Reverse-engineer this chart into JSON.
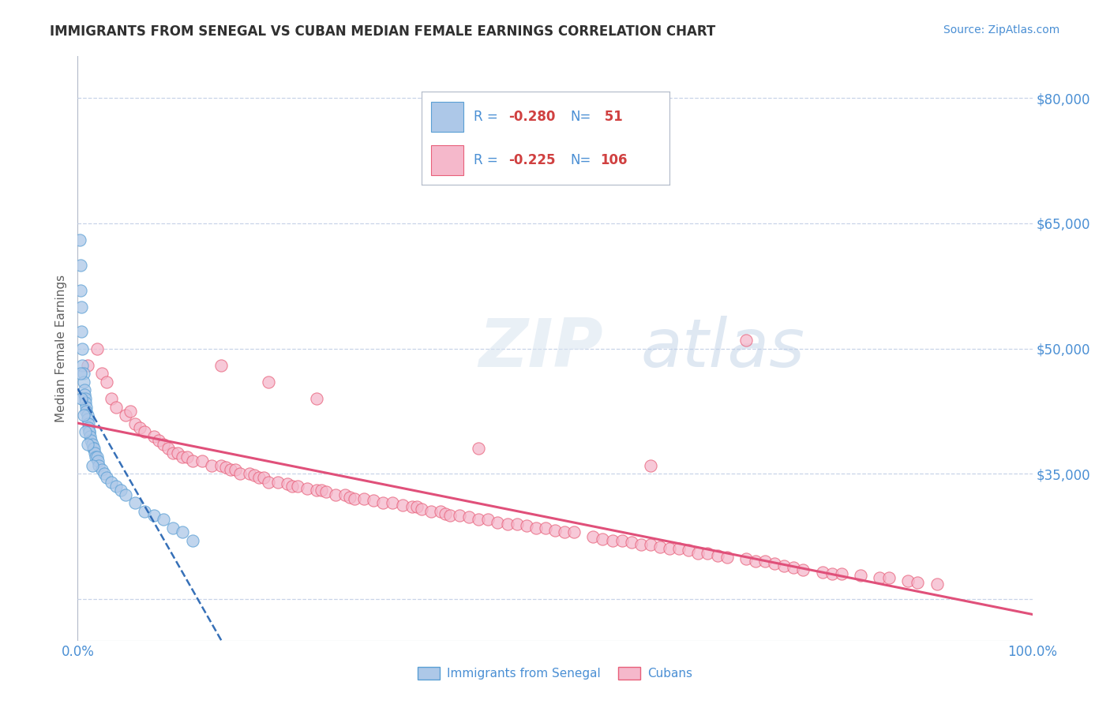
{
  "title": "IMMIGRANTS FROM SENEGAL VS CUBAN MEDIAN FEMALE EARNINGS CORRELATION CHART",
  "source": "Source: ZipAtlas.com",
  "ylabel": "Median Female Earnings",
  "xlim": [
    0,
    1.0
  ],
  "ylim": [
    15000,
    85000
  ],
  "ytick_positions": [
    20000,
    35000,
    50000,
    65000,
    80000
  ],
  "ytick_labels": [
    "",
    "$35,000",
    "$50,000",
    "$65,000",
    "$80,000"
  ],
  "senegal_color": "#adc8e8",
  "cuban_color": "#f5b8cb",
  "senegal_edge_color": "#5a9fd4",
  "cuban_edge_color": "#e8607a",
  "senegal_line_color": "#2060b0",
  "cuban_line_color": "#e0507a",
  "background_color": "#ffffff",
  "grid_color": "#c8d4e8",
  "title_color": "#303030",
  "axis_label_color": "#606060",
  "tick_color": "#4a8fd4",
  "watermark_color": "#d0dff0",
  "legend_text_color": "#4a8fd4",
  "senegal_x": [
    0.002,
    0.003,
    0.003,
    0.004,
    0.004,
    0.005,
    0.005,
    0.006,
    0.006,
    0.007,
    0.007,
    0.008,
    0.008,
    0.009,
    0.009,
    0.01,
    0.01,
    0.011,
    0.011,
    0.012,
    0.012,
    0.013,
    0.014,
    0.015,
    0.016,
    0.017,
    0.018,
    0.019,
    0.02,
    0.021,
    0.022,
    0.025,
    0.028,
    0.03,
    0.035,
    0.04,
    0.045,
    0.05,
    0.06,
    0.07,
    0.08,
    0.09,
    0.1,
    0.11,
    0.12,
    0.003,
    0.004,
    0.006,
    0.008,
    0.01,
    0.015
  ],
  "senegal_y": [
    63000,
    60000,
    57000,
    55000,
    52000,
    50000,
    48000,
    47000,
    46000,
    45000,
    44500,
    44000,
    43500,
    43000,
    42500,
    42000,
    41500,
    41000,
    40500,
    40000,
    40000,
    39500,
    39000,
    38500,
    38000,
    38000,
    37500,
    37000,
    37000,
    36500,
    36000,
    35500,
    35000,
    34500,
    34000,
    33500,
    33000,
    32500,
    31500,
    30500,
    30000,
    29500,
    28500,
    28000,
    27000,
    47000,
    44000,
    42000,
    40000,
    38500,
    36000
  ],
  "cuban_x": [
    0.01,
    0.02,
    0.025,
    0.03,
    0.035,
    0.04,
    0.05,
    0.055,
    0.06,
    0.065,
    0.07,
    0.08,
    0.085,
    0.09,
    0.095,
    0.1,
    0.105,
    0.11,
    0.115,
    0.12,
    0.13,
    0.14,
    0.15,
    0.155,
    0.16,
    0.165,
    0.17,
    0.18,
    0.185,
    0.19,
    0.195,
    0.2,
    0.21,
    0.22,
    0.225,
    0.23,
    0.24,
    0.25,
    0.255,
    0.26,
    0.27,
    0.28,
    0.285,
    0.29,
    0.3,
    0.31,
    0.32,
    0.33,
    0.34,
    0.35,
    0.355,
    0.36,
    0.37,
    0.38,
    0.385,
    0.39,
    0.4,
    0.41,
    0.42,
    0.43,
    0.44,
    0.45,
    0.46,
    0.47,
    0.48,
    0.49,
    0.5,
    0.51,
    0.52,
    0.54,
    0.55,
    0.56,
    0.57,
    0.58,
    0.59,
    0.6,
    0.61,
    0.62,
    0.63,
    0.64,
    0.65,
    0.66,
    0.67,
    0.68,
    0.7,
    0.71,
    0.72,
    0.73,
    0.74,
    0.75,
    0.76,
    0.78,
    0.79,
    0.8,
    0.82,
    0.84,
    0.85,
    0.87,
    0.88,
    0.9,
    0.15,
    0.2,
    0.25,
    0.42,
    0.6,
    0.7
  ],
  "cuban_y": [
    48000,
    50000,
    47000,
    46000,
    44000,
    43000,
    42000,
    42500,
    41000,
    40500,
    40000,
    39500,
    39000,
    38500,
    38000,
    37500,
    37500,
    37000,
    37000,
    36500,
    36500,
    36000,
    36000,
    35800,
    35500,
    35500,
    35000,
    35000,
    34800,
    34500,
    34500,
    34000,
    34000,
    33800,
    33500,
    33500,
    33200,
    33000,
    33000,
    32800,
    32500,
    32500,
    32200,
    32000,
    32000,
    31800,
    31500,
    31500,
    31200,
    31000,
    31000,
    30800,
    30500,
    30500,
    30200,
    30000,
    30000,
    29800,
    29500,
    29500,
    29200,
    29000,
    29000,
    28800,
    28500,
    28500,
    28200,
    28000,
    28000,
    27500,
    27200,
    27000,
    27000,
    26800,
    26500,
    26500,
    26200,
    26000,
    26000,
    25800,
    25500,
    25500,
    25200,
    25000,
    24800,
    24500,
    24500,
    24200,
    24000,
    23800,
    23500,
    23200,
    23000,
    23000,
    22800,
    22500,
    22500,
    22200,
    22000,
    21800,
    48000,
    46000,
    44000,
    38000,
    36000,
    51000
  ]
}
